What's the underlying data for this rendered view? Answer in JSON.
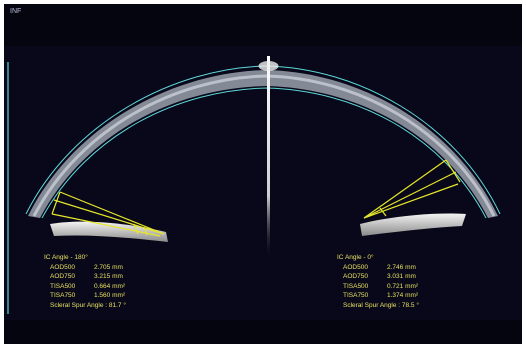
{
  "top_label": "INF",
  "left_measurement": {
    "title": "IC Angle - 180°",
    "rows": [
      {
        "key": "AOD500",
        "value": "2.705 mm"
      },
      {
        "key": "AOD750",
        "value": "3.215 mm"
      },
      {
        "key": "TISA500",
        "value": "0.664 mm²"
      },
      {
        "key": "TISA750",
        "value": "1.560 mm²"
      }
    ],
    "scleral_spur": "Scleral Spur Angle : 81.7 °"
  },
  "right_measurement": {
    "title": "IC Angle - 0°",
    "rows": [
      {
        "key": "AOD500",
        "value": "2.746 mm"
      },
      {
        "key": "AOD750",
        "value": "3.031 mm"
      },
      {
        "key": "TISA500",
        "value": "0.721 mm²"
      },
      {
        "key": "TISA750",
        "value": "1.374 mm²"
      }
    ],
    "scleral_spur": "Scleral Spur Angle : 78.5 °"
  },
  "colors": {
    "background": "#08081a",
    "cornea_outline": "#5fd8d8",
    "angle_lines": "#e6e62a",
    "readout_text": "#e8e060"
  }
}
